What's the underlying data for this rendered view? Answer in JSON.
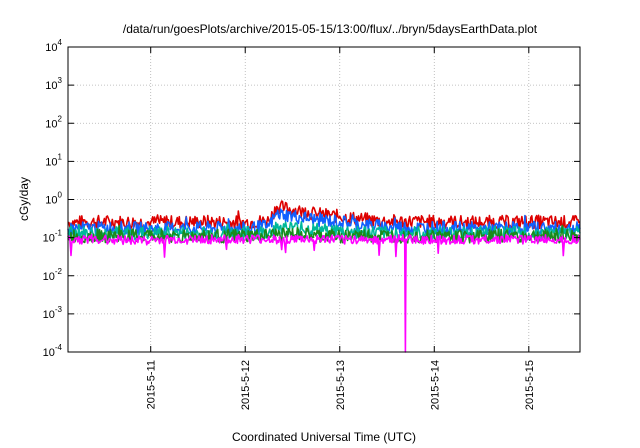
{
  "chart_data": {
    "type": "line",
    "title": "/data/run/goesPlots/archive/2015-05-15/13:00/flux/../bryn/5daysEarthData.plot",
    "xlabel": "Coordinated Universal Time (UTC)",
    "ylabel": "cGy/day",
    "y_scale": "log",
    "ylim": [
      0.0001,
      10000
    ],
    "xlim": [
      "2015-05-10 03:00",
      "2015-05-15 13:00"
    ],
    "x_ticks": [
      "2015-5-11",
      "2015-5-12",
      "2015-5-13",
      "2015-5-14",
      "2015-5-15"
    ],
    "x_tick_dates": [
      "2015-05-11 00:00",
      "2015-05-12 00:00",
      "2015-05-13 00:00",
      "2015-05-14 00:00",
      "2015-05-15 00:00"
    ],
    "y_ticks": [
      {
        "value": 0.0001,
        "base": "10",
        "exp": "-4"
      },
      {
        "value": 0.001,
        "base": "10",
        "exp": "-3"
      },
      {
        "value": 0.01,
        "base": "10",
        "exp": "-2"
      },
      {
        "value": 0.1,
        "base": "10",
        "exp": "-1"
      },
      {
        "value": 1,
        "base": "10",
        "exp": "0"
      },
      {
        "value": 10,
        "base": "10",
        "exp": "1"
      },
      {
        "value": 100,
        "base": "10",
        "exp": "2"
      },
      {
        "value": 1000,
        "base": "10",
        "exp": "3"
      },
      {
        "value": 10000,
        "base": "10",
        "exp": "4"
      }
    ],
    "grid": true,
    "legend": "none",
    "series": [
      {
        "color": "#dd0000",
        "x": [
          "2015-05-10 03:00",
          "2015-05-10 12:00",
          "2015-05-11 00:00",
          "2015-05-11 12:00",
          "2015-05-12 00:00",
          "2015-05-12 06:00",
          "2015-05-12 08:00",
          "2015-05-12 10:00",
          "2015-05-12 14:00",
          "2015-05-12 18:00",
          "2015-05-13 00:00",
          "2015-05-13 06:00",
          "2015-05-13 12:00",
          "2015-05-14 00:00",
          "2015-05-14 12:00",
          "2015-05-15 00:00",
          "2015-05-15 13:00"
        ],
        "y": [
          0.25,
          0.26,
          0.25,
          0.26,
          0.25,
          0.28,
          0.65,
          0.6,
          0.5,
          0.42,
          0.36,
          0.3,
          0.27,
          0.26,
          0.25,
          0.26,
          0.25
        ]
      },
      {
        "color": "#1060ff",
        "x": [
          "2015-05-10 03:00",
          "2015-05-10 12:00",
          "2015-05-11 00:00",
          "2015-05-11 12:00",
          "2015-05-12 00:00",
          "2015-05-12 06:00",
          "2015-05-12 08:00",
          "2015-05-12 10:00",
          "2015-05-12 14:00",
          "2015-05-12 18:00",
          "2015-05-13 00:00",
          "2015-05-13 06:00",
          "2015-05-13 12:00",
          "2015-05-14 00:00",
          "2015-05-14 12:00",
          "2015-05-15 00:00",
          "2015-05-15 13:00"
        ],
        "y": [
          0.17,
          0.18,
          0.17,
          0.18,
          0.17,
          0.2,
          0.42,
          0.4,
          0.34,
          0.3,
          0.26,
          0.22,
          0.19,
          0.18,
          0.17,
          0.18,
          0.17
        ]
      },
      {
        "color": "#00b89a",
        "x": [
          "2015-05-10 03:00",
          "2015-05-10 12:00",
          "2015-05-11 00:00",
          "2015-05-11 12:00",
          "2015-05-12 00:00",
          "2015-05-12 06:00",
          "2015-05-12 08:00",
          "2015-05-12 10:00",
          "2015-05-12 14:00",
          "2015-05-12 18:00",
          "2015-05-13 00:00",
          "2015-05-13 06:00",
          "2015-05-13 12:00",
          "2015-05-14 00:00",
          "2015-05-14 12:00",
          "2015-05-15 00:00",
          "2015-05-15 13:00"
        ],
        "y": [
          0.13,
          0.13,
          0.13,
          0.13,
          0.13,
          0.14,
          0.18,
          0.19,
          0.17,
          0.16,
          0.15,
          0.14,
          0.13,
          0.13,
          0.13,
          0.13,
          0.13
        ]
      },
      {
        "color": "#1a8a1a",
        "x": [
          "2015-05-10 03:00",
          "2015-05-10 12:00",
          "2015-05-11 00:00",
          "2015-05-11 12:00",
          "2015-05-12 00:00",
          "2015-05-12 06:00",
          "2015-05-12 08:00",
          "2015-05-12 10:00",
          "2015-05-12 14:00",
          "2015-05-12 18:00",
          "2015-05-13 00:00",
          "2015-05-13 06:00",
          "2015-05-13 12:00",
          "2015-05-14 00:00",
          "2015-05-14 12:00",
          "2015-05-15 00:00",
          "2015-05-15 13:00"
        ],
        "y": [
          0.11,
          0.11,
          0.11,
          0.11,
          0.11,
          0.11,
          0.12,
          0.12,
          0.12,
          0.11,
          0.11,
          0.11,
          0.11,
          0.11,
          0.11,
          0.11,
          0.11
        ]
      },
      {
        "color": "#ff00ff",
        "x": [
          "2015-05-10 03:00",
          "2015-05-10 12:00",
          "2015-05-11 00:00",
          "2015-05-11 12:00",
          "2015-05-12 00:00",
          "2015-05-12 12:00",
          "2015-05-13 00:00",
          "2015-05-13 12:00",
          "2015-05-13 16:30",
          "2015-05-13 16:40",
          "2015-05-13 16:50",
          "2015-05-14 00:00",
          "2015-05-14 12:00",
          "2015-05-15 00:00",
          "2015-05-15 13:00"
        ],
        "y": [
          0.09,
          0.09,
          0.085,
          0.09,
          0.09,
          0.09,
          0.088,
          0.09,
          0.09,
          0.0001,
          0.09,
          0.088,
          0.09,
          0.09,
          0.09
        ]
      }
    ]
  }
}
